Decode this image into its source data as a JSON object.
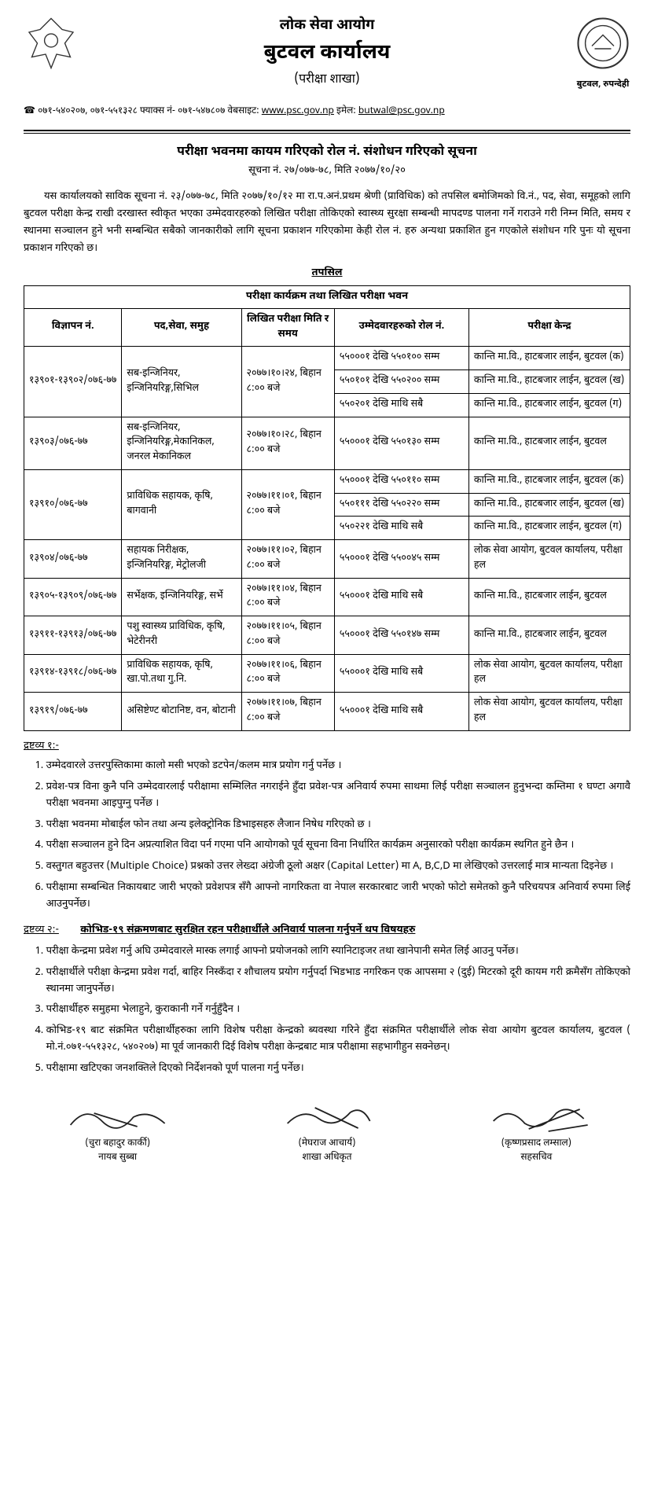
{
  "header": {
    "ministry": "लोक सेवा आयोग",
    "office": "बुटवल कार्यालय",
    "branch": "(परीक्षा शाखा)",
    "location_label": "बुटवल, रुपन्देही",
    "contact_prefix": "☎ ०७१-५४०२०७, ०७१-५५१३२८ फ्याक्स नं- ०७१-५४७८०७ वेबसाइट:",
    "website": "www.psc.gov.np",
    "email_label": "इमेल:",
    "email": "butwal@psc.gov.np"
  },
  "notice": {
    "title": "परीक्षा भवनमा कायम गरिएको रोल नं. संशोधन गरिएको सूचना",
    "sub": "सूचना नं. २७/०७७-७८, मिति २०७७/१०/२०",
    "body": "यस कार्यालयको साविक सूचना नं. २३/०७७-७८, मिति २०७७/१०/१२ मा रा.प.अनं.प्रथम श्रेणी (प्राविधिक) को तपसिल बमोजिमको वि.नं., पद, सेवा, समूहको लागि बुटवल परीक्षा केन्द्र राखी दरखास्त स्वीकृत भएका उम्मेदवारहरुको लिखित परीक्षा तोकिएको स्वास्थ्य सुरक्षा सम्बन्धी मापदण्ड पालना गर्ने गराउने गरी निम्न मिति, समय र स्थानमा सञ्चालन हुने भनी सम्बन्धित सबैको जानकारीको लागि सूचना प्रकाशन गरिएकोमा केही रोल नं. हरु अन्यथा प्रकाशित हुन गएकोले संशोधन गरि पुनः यो सूचना प्रकाशन गरिएको छ।"
  },
  "tapasil_label": "तपसिल",
  "table": {
    "title": "परीक्षा कार्यक्रम तथा लिखित परीक्षा भवन",
    "columns": {
      "ad": "विज्ञापन नं.",
      "post": "पद,सेवा, समुह",
      "date": "लिखित परीक्षा मिति र समय",
      "roll": "उम्मेदवारहरुको रोल नं.",
      "center": "परीक्षा केन्द्र"
    },
    "groups": [
      {
        "ad": "१३९०१-१३९०२/०७६-७७",
        "post": "सब-इन्जिनियर, इन्जिनियरिङ्ग,सिभिल",
        "date": "२०७७।१०।२४, बिहान ८:०० बजे",
        "rows": [
          {
            "roll": "५५०००१ देखि ५५०१०० सम्म",
            "center": "कान्ति मा.वि., हाटबजार लाईन, बुटवल (क)"
          },
          {
            "roll": "५५०१०१ देखि ५५०२०० सम्म",
            "center": "कान्ति मा.वि., हाटबजार लाईन, बुटवल (ख)"
          },
          {
            "roll": "५५०२०१ देखि माथि सबै",
            "center": "कान्ति मा.वि., हाटबजार लाईन, बुटवल (ग)"
          }
        ]
      },
      {
        "ad": "१३९०३/०७६-७७",
        "post": "सब-इन्जिनियर, इन्जिनियरिङ्ग,मेकानिकल, जनरल मेकानिकल",
        "date": "२०७७।१०।२८, बिहान ८:०० बजे",
        "rows": [
          {
            "roll": "५५०००१ देखि ५५०१३० सम्म",
            "center": "कान्ति मा.वि., हाटबजार लाईन, बुटवल"
          }
        ]
      },
      {
        "ad": "१३९१०/०७६-७७",
        "post": "प्राविधिक सहायक, कृषि, बागवानी",
        "date": "२०७७।११।०१, बिहान ८:०० बजे",
        "rows": [
          {
            "roll": "५५०००१ देखि ५५०११० सम्म",
            "center": "कान्ति मा.वि., हाटबजार लाईन, बुटवल (क)"
          },
          {
            "roll": "५५०१११ देखि ५५०२२० सम्म",
            "center": "कान्ति मा.वि., हाटबजार लाईन, बुटवल (ख)"
          },
          {
            "roll": "५५०२२१ देखि माथि सबै",
            "center": "कान्ति मा.वि., हाटबजार लाईन, बुटवल (ग)"
          }
        ]
      },
      {
        "ad": "१३९०४/०७६-७७",
        "post": "सहायक निरीक्षक, इन्जिनियरिङ्ग, मेट्रोलजी",
        "date": "२०७७।११।०२, बिहान ८:०० बजे",
        "rows": [
          {
            "roll": "५५०००१ देखि ५५००४५ सम्म",
            "center": "लोक सेवा आयोग, बुटवल कार्यालय, परीक्षा हल"
          }
        ]
      },
      {
        "ad": "१३९०५-१३९०९/०७६-७७",
        "post": "सर्भेक्षक, इन्जिनियरिङ्ग, सर्भे",
        "date": "२०७७।११।०४, बिहान ८:०० बजे",
        "rows": [
          {
            "roll": "५५०००१ देखि माथि सबै",
            "center": "कान्ति मा.वि., हाटबजार लाईन, बुटवल"
          }
        ]
      },
      {
        "ad": "१३९११-१३९१३/०७६-७७",
        "post": "पशु स्वास्थ्य प्राविधिक, कृषि, भेटेरीनरी",
        "date": "२०७७।११।०५, बिहान ८:०० बजे",
        "rows": [
          {
            "roll": "५५०००१ देखि ५५०१४७ सम्म",
            "center": "कान्ति मा.वि., हाटबजार लाईन, बुटवल"
          }
        ]
      },
      {
        "ad": "१३९१४-१३९१८/०७६-७७",
        "post": "प्राविधिक सहायक, कृषि, खा.पो.तथा गु.नि.",
        "date": "२०७७।११।०६, बिहान ८:०० बजे",
        "rows": [
          {
            "roll": "५५०००१ देखि माथि सबै",
            "center": "लोक सेवा आयोग, बुटवल कार्यालय, परीक्षा हल"
          }
        ]
      },
      {
        "ad": "१३९१९/०७६-७७",
        "post": "असिष्टेण्ट बोटानिष्ट, वन, बोटानी",
        "date": "२०७७।११।०७, बिहान ८:०० बजे",
        "rows": [
          {
            "roll": "५५०००१ देखि माथि सबै",
            "center": "लोक सेवा आयोग, बुटवल कार्यालय, परीक्षा हल"
          }
        ]
      }
    ]
  },
  "notes1": {
    "heading": "द्रष्टव्य १:-",
    "items": [
      "उम्मेदवारले उत्तरपुस्तिकामा कालो मसी भएको डटपेन/कलम मात्र प्रयोग गर्नु पर्नेछ ।",
      "प्रवेश-पत्र विना कुनै पनि उम्मेदवारलाई परीक्षामा सम्मिलित नगराईने हुँदा प्रवेश-पत्र अनिवार्य रुपमा साथमा लिई परीक्षा सञ्चालन हुनुभन्दा कम्तिमा १ घण्टा अगावै परीक्षा भवनमा आइपुग्नु पर्नेछ ।",
      "परीक्षा भवनमा मोबाईल फोन तथा अन्य इलेक्ट्रोनिक डिभाइसहरु लैजान निषेध गरिएको छ ।",
      "परीक्षा सञ्चालन हुने दिन अप्रत्याशित विदा पर्न गएमा पनि आयोगको पूर्व सूचना विना निर्धारित कार्यक्रम अनुसारको परीक्षा कार्यक्रम स्थगित हुने छैन ।",
      "वस्तुगत बहुउत्तर (Multiple Choice) प्रश्नको उत्तर लेख्दा अंग्रेजी ठूलो अक्षर (Capital Letter) मा A, B,C,D मा लेखिएको उत्तरलाई मात्र मान्यता दिइनेछ ।",
      "परीक्षामा सम्बन्धित निकायबाट जारी भएको प्रवेशपत्र सँगै आफ्नो नागरिकता वा नेपाल सरकारबाट जारी भएको फोटो समेतको कुनै परिचयपत्र अनिवार्य रुपमा लिई आउनुपर्नेछ।"
    ]
  },
  "notes2": {
    "heading_label": "द्रष्टव्य २:-",
    "heading_title": "कोभिड-१९ संक्रमणबाट सुरक्षित रहन परीक्षार्थीले अनिवार्य पालना गर्नुपर्ने थप विषयहरु",
    "items": [
      "परीक्षा केन्द्रमा प्रवेश गर्नु अघि उम्मेदवारले मास्क लगाई आफ्नो प्रयोजनको लागि स्यानिटाइजर तथा खानेपानी समेत लिई आउनु पर्नेछ।",
      "परीक्षार्थीले परीक्षा केन्द्रमा प्रवेश गर्दा, बाहिर निस्कँदा र शौचालय प्रयोग गर्नुपर्दा भिडभाड नगरिकन एक आपसमा २ (दुई) मिटरको दूरी कायम गरी क्रमैसँग तोकिएको स्थानमा जानुपर्नेछ।",
      "परीक्षार्थीहरु समुहमा भेलाहुने, कुराकानी गर्ने गर्नुहुँदैन ।",
      "कोभिड-१९ बाट संक्रमित परीक्षार्थीहरुका लागि विशेष परीक्षा केन्द्रको ब्यवस्था गरिने हुँदा संक्रमित परीक्षार्थीले लोक सेवा आयोग बुटवल कार्यालय, बुटवल ( मो.नं.०७१-५५१३२८, ५४०२०७) मा पूर्व जानकारी दिई विशेष परीक्षा केन्द्रबाट मात्र परीक्षामा सहभागीहुन सक्नेछन्।",
      "परीक्षामा खटिएका जनशक्तिले दिएको निर्देशनको पूर्ण पालना गर्नु पर्नेछ।"
    ]
  },
  "signatures": [
    {
      "name": "(चुरा बहादुर कार्की)",
      "post": "नायब सुब्बा"
    },
    {
      "name": "(मेघराज आचार्य)",
      "post": "शाखा अधिकृत"
    },
    {
      "name": "(कृष्णप्रसाद लम्साल)",
      "post": "सहसचिव"
    }
  ]
}
